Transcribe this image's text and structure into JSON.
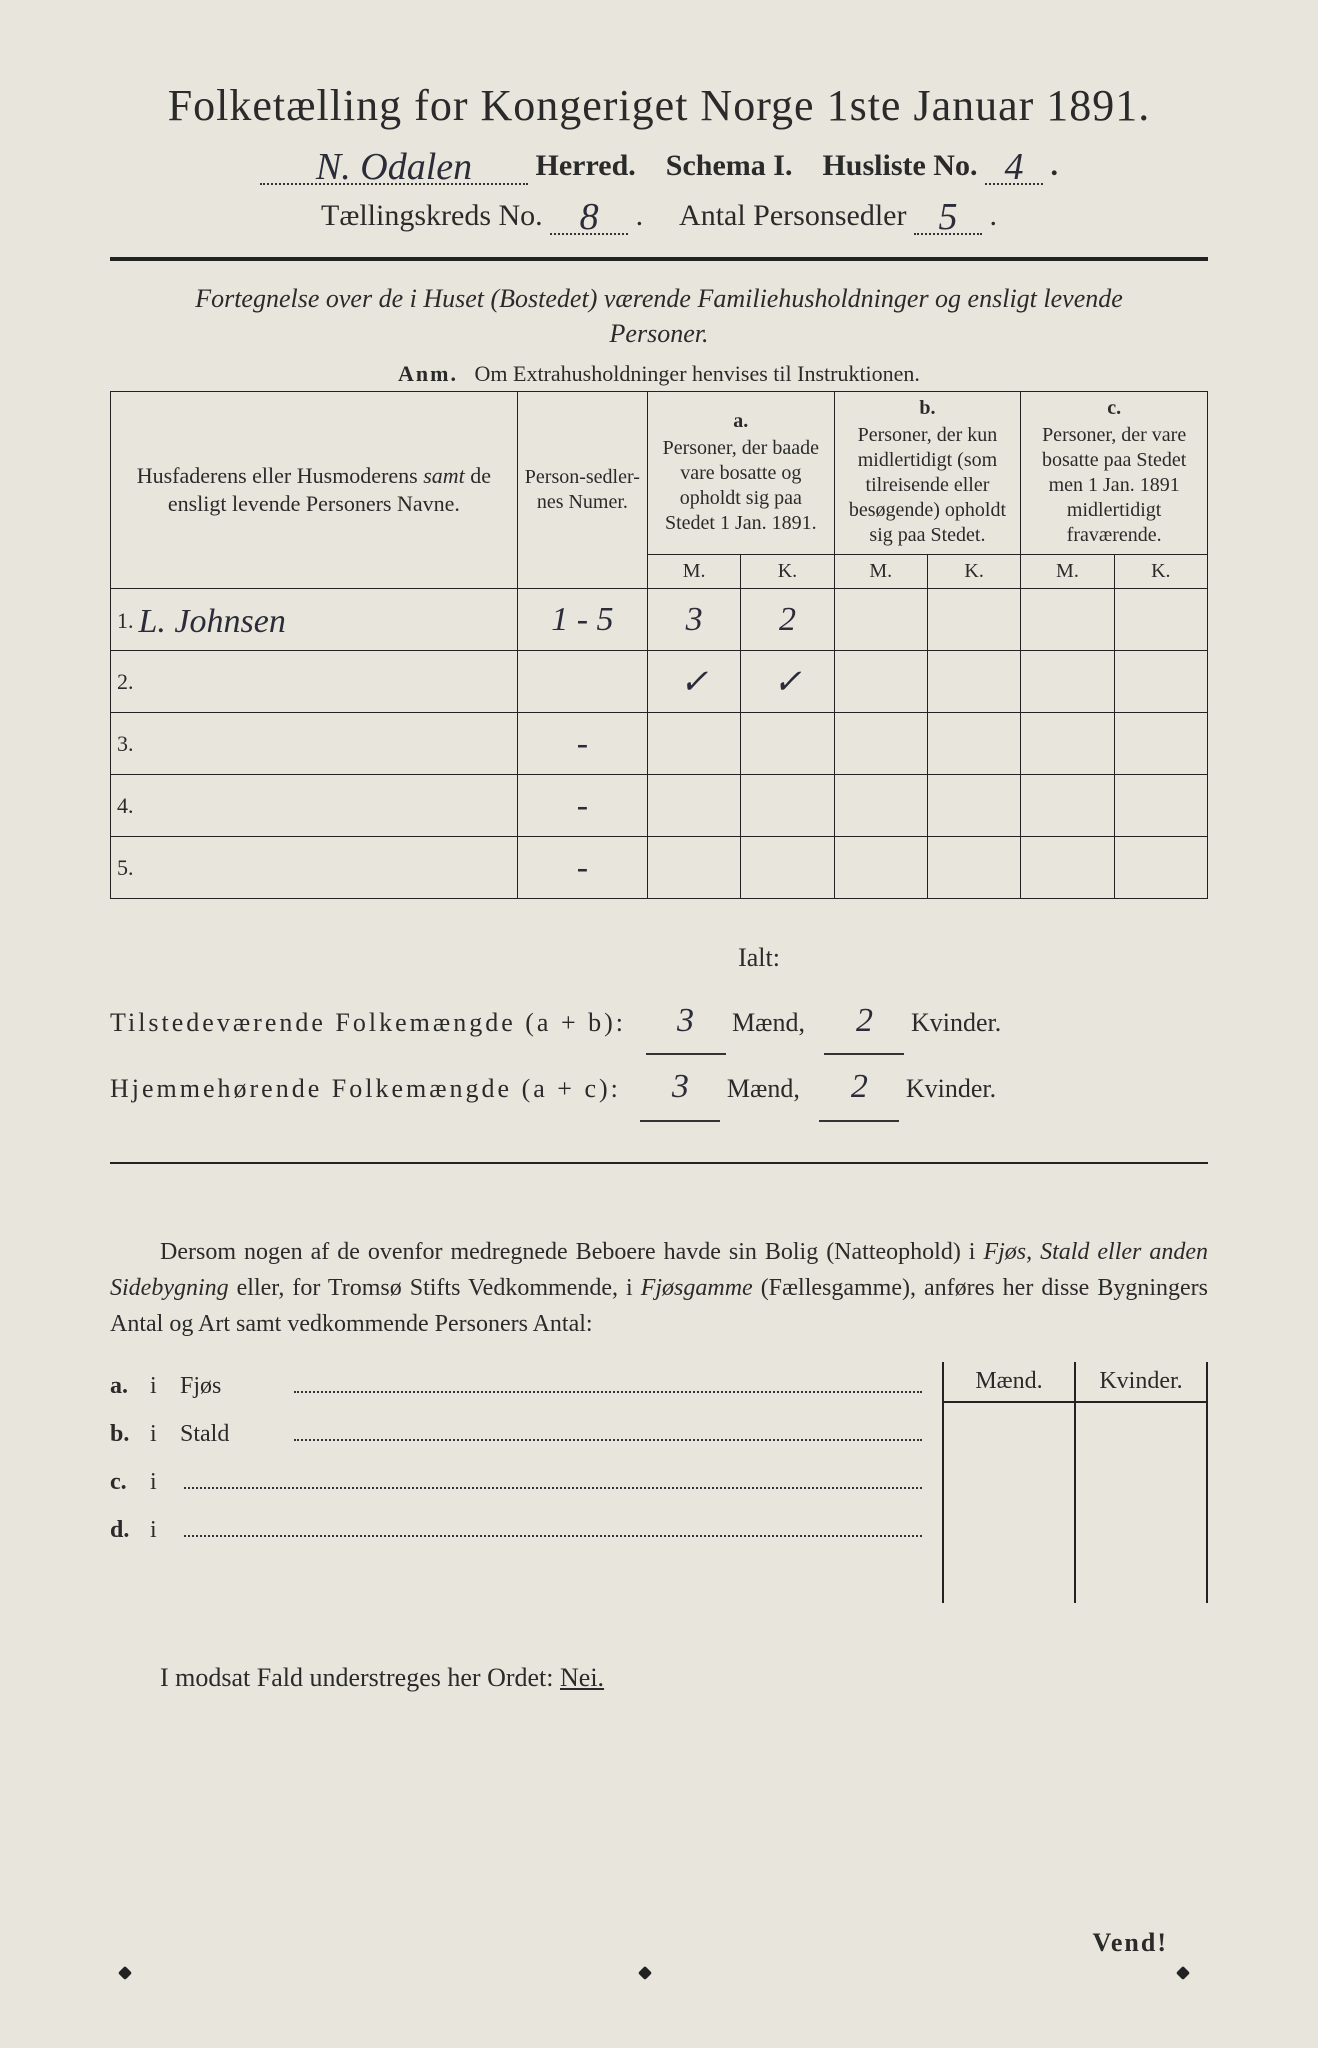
{
  "title": "Folketælling for Kongeriget Norge 1ste Januar 1891.",
  "line2": {
    "herred_value": "N. Odalen",
    "herred_label": "Herred.",
    "schema_label": "Schema I.",
    "husliste_label": "Husliste No.",
    "husliste_value": "4"
  },
  "line3": {
    "kreds_label": "Tællingskreds No.",
    "kreds_value": "8",
    "antal_label": "Antal Personsedler",
    "antal_value": "5"
  },
  "subtitle": "Fortegnelse over de i Huset (Bostedet) værende Familiehusholdninger og ensligt levende Personer.",
  "anm_label": "Anm.",
  "anm_text": "Om Extrahusholdninger henvises til Instruktionen.",
  "headers": {
    "name": "Husfaderens eller Husmoderens samt de ensligt levende Personers Navne.",
    "numer": "Person-sedler-nes Numer.",
    "a_label": "a.",
    "a_text": "Personer, der baade vare bosatte og opholdt sig paa Stedet 1 Jan. 1891.",
    "b_label": "b.",
    "b_text": "Personer, der kun midlertidigt (som tilreisende eller besøgende) opholdt sig paa Stedet.",
    "c_label": "c.",
    "c_text": "Personer, der vare bosatte paa Stedet men 1 Jan. 1891 midlertidigt fraværende.",
    "m": "M.",
    "k": "K."
  },
  "rows": [
    {
      "n": "1.",
      "name": "L. Johnsen",
      "numer": "1 - 5",
      "a_m": "3",
      "a_k": "2",
      "b_m": "",
      "b_k": "",
      "c_m": "",
      "c_k": ""
    },
    {
      "n": "2.",
      "name": "",
      "numer": "",
      "a_m": "✓",
      "a_k": "✓",
      "b_m": "",
      "b_k": "",
      "c_m": "",
      "c_k": ""
    },
    {
      "n": "3.",
      "name": "",
      "numer": "-",
      "a_m": "",
      "a_k": "",
      "b_m": "",
      "b_k": "",
      "c_m": "",
      "c_k": ""
    },
    {
      "n": "4.",
      "name": "",
      "numer": "-",
      "a_m": "",
      "a_k": "",
      "b_m": "",
      "b_k": "",
      "c_m": "",
      "c_k": ""
    },
    {
      "n": "5.",
      "name": "",
      "numer": "-",
      "a_m": "",
      "a_k": "",
      "b_m": "",
      "b_k": "",
      "c_m": "",
      "c_k": ""
    }
  ],
  "totals": {
    "ialt": "Ialt:",
    "line1_label": "Tilstedeværende Folkemængde (a + b):",
    "line2_label": "Hjemmehørende Folkemængde (a + c):",
    "maend": "Mænd,",
    "kvinder": "Kvinder.",
    "v1m": "3",
    "v1k": "2",
    "v2m": "3",
    "v2k": "2"
  },
  "para": "Dersom nogen af de ovenfor medregnede Beboere havde sin Bolig (Natteophold) i Fjøs, Stald eller anden Sidebygning eller, for Tromsø Stifts Vedkommende, i Fjøsgamme (Fællesgamme), anføres her disse Bygningers Antal og Art samt vedkommende Personers Antal:",
  "sublist": {
    "a": {
      "tag": "a.",
      "i": "i",
      "word": "Fjøs"
    },
    "b": {
      "tag": "b.",
      "i": "i",
      "word": "Stald"
    },
    "c": {
      "tag": "c.",
      "i": "i",
      "word": ""
    },
    "d": {
      "tag": "d.",
      "i": "i",
      "word": ""
    }
  },
  "mk": {
    "m": "Mænd.",
    "k": "Kvinder."
  },
  "nei": {
    "text": "I modsat Fald understreges her Ordet:",
    "word": "Nei."
  },
  "vend": "Vend!",
  "colors": {
    "paper": "#e8e6dc",
    "ink": "#2a2a2a",
    "hand": "#2b2b3a"
  }
}
